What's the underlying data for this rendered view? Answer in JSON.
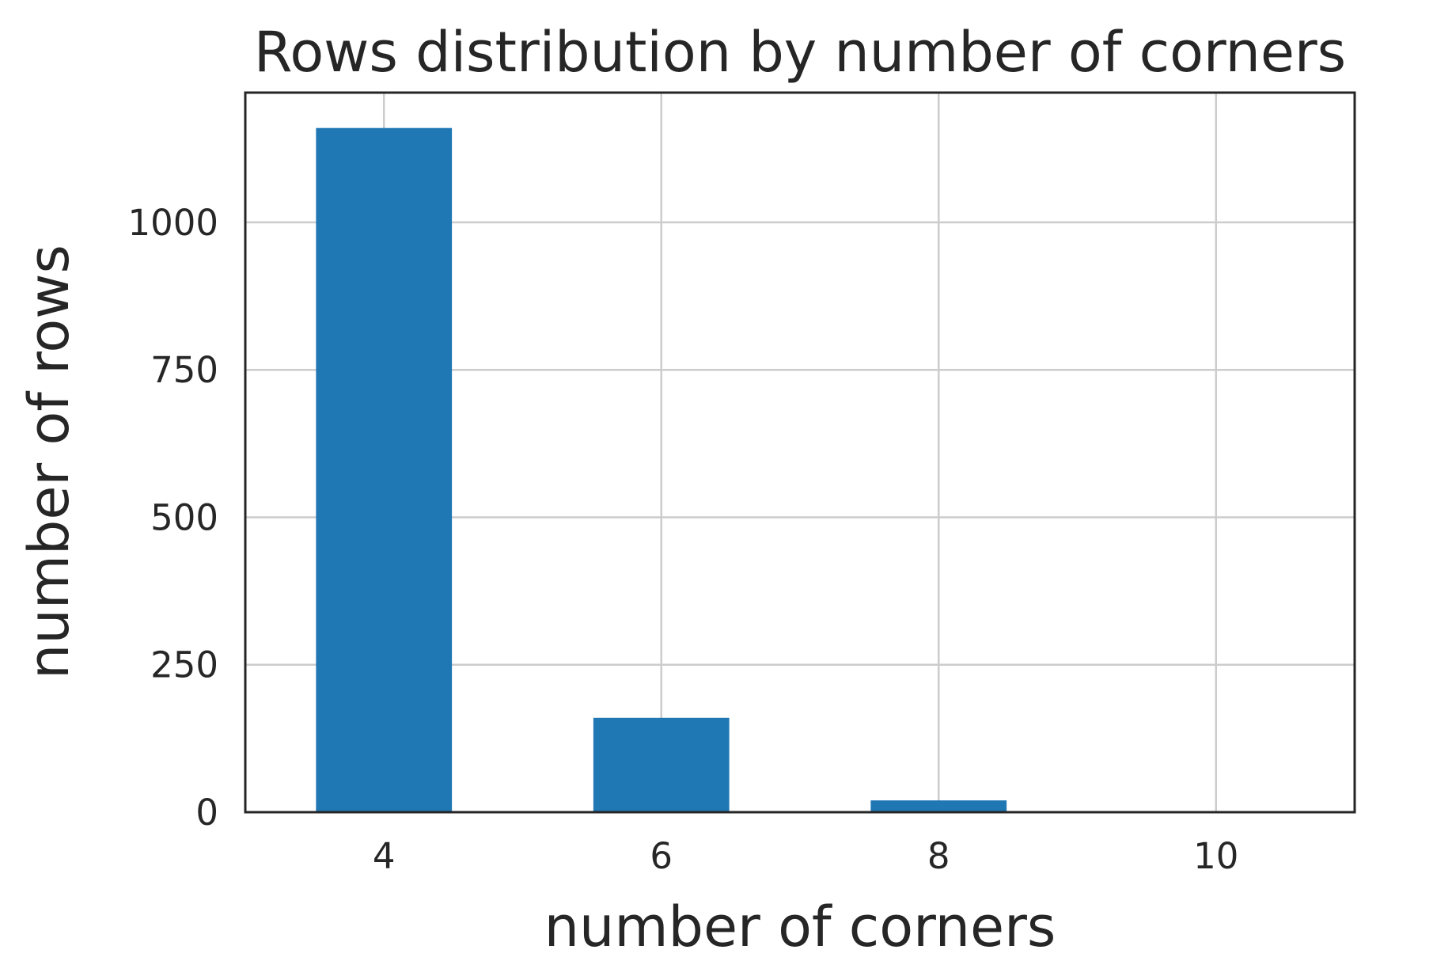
{
  "chart_data": {
    "type": "bar",
    "title": "Rows distribution  by number of corners",
    "xlabel": "number of corners",
    "ylabel": "number of rows",
    "x": [
      4,
      6,
      8,
      10
    ],
    "values": [
      1160,
      160,
      20,
      0
    ],
    "xticks": [
      "4",
      "6",
      "8",
      "10"
    ],
    "yticks": [
      "0",
      "250",
      "500",
      "750",
      "1000"
    ],
    "ytick_values": [
      0,
      250,
      500,
      750,
      1000
    ],
    "xlim": [
      3,
      11
    ],
    "ylim": [
      0,
      1220
    ],
    "bar_width": 1,
    "grid": true,
    "bar_color": "#1f77b4"
  }
}
